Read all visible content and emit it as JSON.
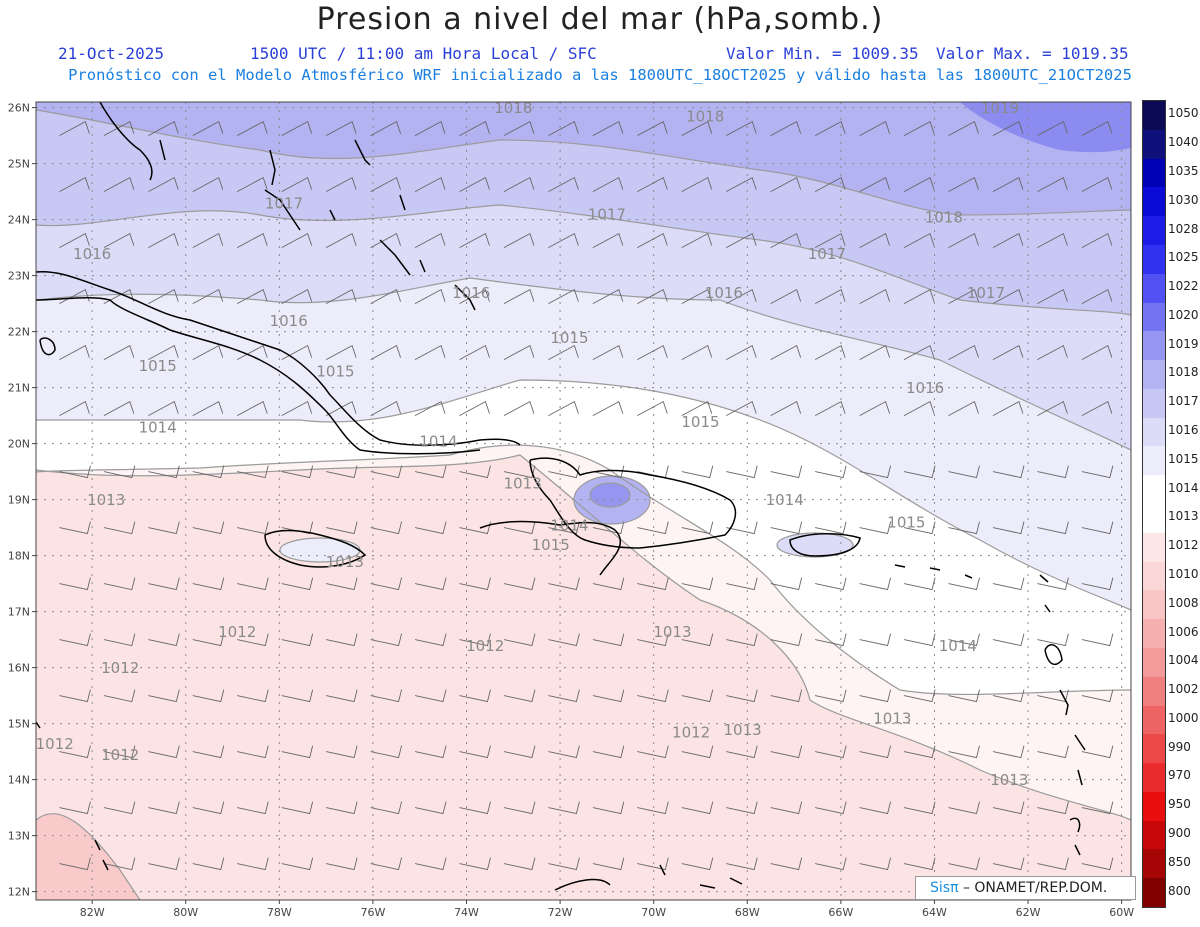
{
  "header": {
    "title": "Presion a nivel del mar (hPa,somb.)",
    "date": "21-Oct-2025",
    "time": "1500 UTC / 11:00 am Hora Local / SFC",
    "value_min": "Valor Min. = 1009.35",
    "value_max": "Valor Max. = 1019.35",
    "description": "Pronóstico con el Modelo Atmosférico WRF inicializado a las 1800UTC_18OCT2025 y válido hasta las  1800UTC_21OCT2025"
  },
  "map": {
    "lat_labels": [
      "26N",
      "25N",
      "24N",
      "23N",
      "22N",
      "21N",
      "20N",
      "19N",
      "18N",
      "17N",
      "16N",
      "15N",
      "14N",
      "13N",
      "12N"
    ],
    "lon_labels": [
      "82W",
      "80W",
      "78W",
      "76W",
      "74W",
      "72W",
      "70W",
      "68W",
      "66W",
      "64W",
      "62W",
      "60W"
    ],
    "isobar_labels": [
      {
        "text": "1018",
        "lon": -73.0,
        "lat": 25.9
      },
      {
        "text": "1018",
        "lon": -68.9,
        "lat": 25.75
      },
      {
        "text": "1019",
        "lon": -62.6,
        "lat": 25.9
      },
      {
        "text": "1017",
        "lon": -77.9,
        "lat": 24.2
      },
      {
        "text": "1017",
        "lon": -71.0,
        "lat": 24.0
      },
      {
        "text": "1018",
        "lon": -63.8,
        "lat": 23.95
      },
      {
        "text": "1016",
        "lon": -82.0,
        "lat": 23.3
      },
      {
        "text": "1017",
        "lon": -66.3,
        "lat": 23.3
      },
      {
        "text": "1016",
        "lon": -73.9,
        "lat": 22.6
      },
      {
        "text": "1016",
        "lon": -68.5,
        "lat": 22.6
      },
      {
        "text": "1017",
        "lon": -62.9,
        "lat": 22.6
      },
      {
        "text": "1016",
        "lon": -77.8,
        "lat": 22.1
      },
      {
        "text": "1015",
        "lon": -71.8,
        "lat": 21.8
      },
      {
        "text": "1015",
        "lon": -80.6,
        "lat": 21.3
      },
      {
        "text": "1015",
        "lon": -76.8,
        "lat": 21.2
      },
      {
        "text": "1016",
        "lon": -64.2,
        "lat": 20.9
      },
      {
        "text": "1015",
        "lon": -69.0,
        "lat": 20.3
      },
      {
        "text": "1014",
        "lon": -80.6,
        "lat": 20.2
      },
      {
        "text": "1014",
        "lon": -74.6,
        "lat": 19.95
      },
      {
        "text": "1013",
        "lon": -72.8,
        "lat": 19.2
      },
      {
        "text": "1013",
        "lon": -81.7,
        "lat": 18.9
      },
      {
        "text": "1014",
        "lon": -67.2,
        "lat": 18.9
      },
      {
        "text": "1014",
        "lon": -71.8,
        "lat": 18.45
      },
      {
        "text": "1015",
        "lon": -64.6,
        "lat": 18.5
      },
      {
        "text": "1015",
        "lon": -72.2,
        "lat": 18.1
      },
      {
        "text": "1013",
        "lon": -76.6,
        "lat": 17.8
      },
      {
        "text": "1012",
        "lon": -78.9,
        "lat": 16.55
      },
      {
        "text": "1013",
        "lon": -69.6,
        "lat": 16.55
      },
      {
        "text": "1012",
        "lon": -73.6,
        "lat": 16.3
      },
      {
        "text": "1014",
        "lon": -63.5,
        "lat": 16.3
      },
      {
        "text": "1012",
        "lon": -81.4,
        "lat": 15.9
      },
      {
        "text": "1013",
        "lon": -64.9,
        "lat": 15.0
      },
      {
        "text": "1012",
        "lon": -69.2,
        "lat": 14.75
      },
      {
        "text": "1013",
        "lon": -68.1,
        "lat": 14.8
      },
      {
        "text": "1012",
        "lon": -82.8,
        "lat": 14.55
      },
      {
        "text": "1012",
        "lon": -81.4,
        "lat": 14.35
      },
      {
        "text": "1013",
        "lon": -62.4,
        "lat": 13.9
      }
    ]
  },
  "legend": {
    "levels": [
      "1050",
      "1040",
      "1035",
      "1030",
      "1028",
      "1025",
      "1022",
      "1020",
      "1019",
      "1018",
      "1017",
      "1016",
      "1015",
      "1014",
      "1013",
      "1012",
      "1010",
      "1008",
      "1006",
      "1004",
      "1002",
      "1000",
      "990",
      "970",
      "950",
      "900",
      "850",
      "800"
    ],
    "colors": [
      "#0b0b55",
      "#10107d",
      "#0000b5",
      "#0b0bd8",
      "#1c1ce6",
      "#3131f0",
      "#5252f2",
      "#7474f2",
      "#9696f0",
      "#b3b3f2",
      "#c8c8f5",
      "#dcdcf8",
      "#ececfa",
      "#ffffff",
      "#ffffff",
      "#fde6e6",
      "#fbd6d6",
      "#f9c4c4",
      "#f6b0b0",
      "#f39a9a",
      "#f08080",
      "#ee6464",
      "#ec4848",
      "#eb2c2c",
      "#ea0d0d",
      "#c80808",
      "#a60505",
      "#800000"
    ]
  },
  "credit": {
    "brand": "Sisπ",
    "text": "– ONAMET/REP.DOM."
  }
}
